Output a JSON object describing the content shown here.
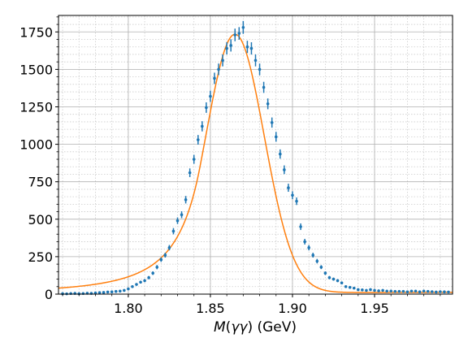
{
  "chart_data": {
    "type": "scatter",
    "title": "",
    "xlabel": "M(γγ) (GeV)",
    "xlabel_parts": {
      "prefix": "M",
      "open": "(",
      "inner": "γγ",
      "suffix": ") (GeV)"
    },
    "ylabel": "",
    "xlim": [
      1.7575,
      1.9975
    ],
    "ylim": [
      0,
      1860
    ],
    "xticks": [
      1.8,
      1.85,
      1.9,
      1.95
    ],
    "xtick_labels": [
      "1.80",
      "1.85",
      "1.90",
      "1.95"
    ],
    "yticks": [
      0,
      250,
      500,
      750,
      1000,
      1250,
      1500,
      1750
    ],
    "ytick_labels": [
      "0",
      "250",
      "500",
      "750",
      "1000",
      "1250",
      "1500",
      "1750"
    ],
    "grid": true,
    "minor_grid": true,
    "colors": {
      "data": "#1f77b4",
      "fit": "#ff7f0e",
      "grid_major": "#b0b0b0",
      "grid_minor": "#cccccc"
    },
    "series": [
      {
        "kind": "points_with_errors",
        "x": [
          1.76,
          1.7625,
          1.765,
          1.7675,
          1.77,
          1.7725,
          1.775,
          1.7775,
          1.78,
          1.7825,
          1.785,
          1.7875,
          1.79,
          1.7925,
          1.795,
          1.7975,
          1.8,
          1.8025,
          1.805,
          1.8075,
          1.81,
          1.8125,
          1.815,
          1.8175,
          1.82,
          1.8225,
          1.825,
          1.8275,
          1.83,
          1.8325,
          1.835,
          1.8375,
          1.84,
          1.8425,
          1.845,
          1.8475,
          1.85,
          1.8525,
          1.855,
          1.8575,
          1.86,
          1.8625,
          1.865,
          1.8675,
          1.87,
          1.8725,
          1.875,
          1.8775,
          1.88,
          1.8825,
          1.885,
          1.8875,
          1.89,
          1.8925,
          1.895,
          1.8975,
          1.9,
          1.9025,
          1.905,
          1.9075,
          1.91,
          1.9125,
          1.915,
          1.9175,
          1.92,
          1.9225,
          1.925,
          1.9275,
          1.93,
          1.9325,
          1.935,
          1.9375,
          1.94,
          1.9425,
          1.945,
          1.9475,
          1.95,
          1.9525,
          1.955,
          1.9575,
          1.96,
          1.9625,
          1.965,
          1.9675,
          1.97,
          1.9725,
          1.975,
          1.9775,
          1.98,
          1.9825,
          1.985,
          1.9875,
          1.99,
          1.9925,
          1.995
        ],
        "y": [
          3,
          2,
          4,
          5,
          3,
          4,
          6,
          5,
          8,
          10,
          11,
          14,
          15,
          18,
          20,
          25,
          35,
          50,
          65,
          80,
          90,
          110,
          140,
          180,
          230,
          260,
          310,
          420,
          490,
          530,
          630,
          810,
          900,
          1030,
          1120,
          1245,
          1320,
          1440,
          1500,
          1560,
          1640,
          1660,
          1730,
          1740,
          1780,
          1650,
          1640,
          1560,
          1500,
          1380,
          1270,
          1145,
          1050,
          935,
          830,
          710,
          660,
          620,
          450,
          350,
          310,
          260,
          220,
          180,
          140,
          110,
          100,
          90,
          75,
          50,
          45,
          40,
          30,
          28,
          25,
          30,
          25,
          22,
          25,
          20,
          20,
          18,
          18,
          18,
          15,
          20,
          20,
          15,
          20,
          18,
          16,
          14,
          16,
          15,
          14
        ],
        "err": [
          2,
          2,
          2,
          2,
          2,
          2,
          3,
          3,
          3,
          3,
          3,
          4,
          4,
          4,
          5,
          5,
          6,
          7,
          8,
          9,
          10,
          11,
          12,
          14,
          15,
          16,
          18,
          21,
          22,
          23,
          25,
          29,
          30,
          32,
          34,
          35,
          37,
          38,
          39,
          40,
          41,
          41,
          42,
          42,
          43,
          41,
          41,
          40,
          39,
          37,
          36,
          34,
          33,
          31,
          29,
          27,
          26,
          25,
          22,
          19,
          18,
          16,
          15,
          13,
          12,
          11,
          10,
          10,
          9,
          7,
          7,
          6,
          6,
          6,
          5,
          6,
          5,
          5,
          5,
          5,
          5,
          4,
          4,
          4,
          4,
          5,
          5,
          4,
          5,
          4,
          4,
          4,
          4,
          4,
          4
        ]
      },
      {
        "kind": "fit_curve",
        "model": {
          "mean": 1.865,
          "sigma": 0.0178,
          "amplitude": 1725,
          "tail_alpha": 1.2,
          "tail_n": 3.0,
          "background": [
            7,
            5
          ]
        }
      }
    ]
  }
}
